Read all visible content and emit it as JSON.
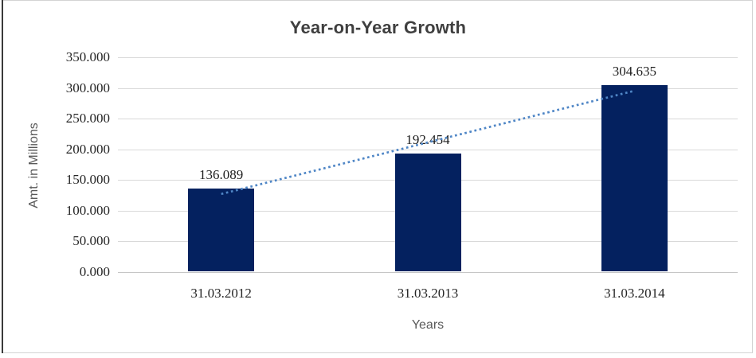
{
  "chart_data": {
    "type": "bar",
    "title": "Year-on-Year Growth",
    "categories": [
      "31.03.2012",
      "31.03.2013",
      "31.03.2014"
    ],
    "values": [
      136.089,
      192.454,
      304.635
    ],
    "data_labels": [
      "136.089",
      "192.454",
      "304.635"
    ],
    "xlabel": "Years",
    "ylabel": "Amt. in Millions",
    "ylim": [
      0,
      350
    ],
    "ytick_interval": 50,
    "ytick_labels": [
      "350.000",
      "300.000",
      "250.000",
      "200.000",
      "150.000",
      "100.000",
      "50.000",
      "0.000"
    ],
    "grid": true,
    "legend": "none",
    "trendline": {
      "type": "linear",
      "style": "dotted"
    },
    "colors": {
      "bar": "#04215f",
      "trendline": "#4f86c6",
      "gridline": "#d9d9d9",
      "axis_line": "#c6c6c6",
      "title_text": "#3f3f3f",
      "tick_text": "#262626",
      "axis_title_text": "#595959",
      "chart_border": "#d3d3d3",
      "left_edge_line": "#3a3a3a"
    }
  }
}
